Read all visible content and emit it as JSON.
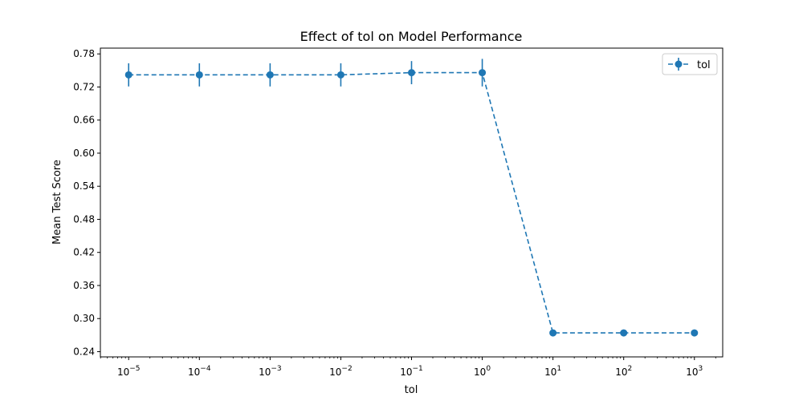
{
  "chart_data": {
    "type": "line",
    "title": "Effect of tol on Model Performance",
    "xlabel": "tol",
    "ylabel": "Mean Test Score",
    "xscale": "log",
    "xlim_exp": [
      -5.4,
      3.4
    ],
    "ylim": [
      0.2305,
      0.7905
    ],
    "x_ticks": [
      {
        "base": "10",
        "exp": "−5"
      },
      {
        "base": "10",
        "exp": "−4"
      },
      {
        "base": "10",
        "exp": "−3"
      },
      {
        "base": "10",
        "exp": "−2"
      },
      {
        "base": "10",
        "exp": "−1"
      },
      {
        "base": "10",
        "exp": "0"
      },
      {
        "base": "10",
        "exp": "1"
      },
      {
        "base": "10",
        "exp": "2"
      },
      {
        "base": "10",
        "exp": "3"
      }
    ],
    "x_tick_values": [
      1e-05,
      0.0001,
      0.001,
      0.01,
      0.1,
      1,
      10,
      100,
      1000
    ],
    "y_ticks": [
      "0.24",
      "0.30",
      "0.36",
      "0.42",
      "0.48",
      "0.54",
      "0.60",
      "0.66",
      "0.72",
      "0.78"
    ],
    "y_tick_values": [
      0.24,
      0.3,
      0.36,
      0.42,
      0.48,
      0.54,
      0.6,
      0.66,
      0.72,
      0.78
    ],
    "grid": false,
    "legend_position": "top-right",
    "series": [
      {
        "name": "tol",
        "color": "#1f77b4",
        "linestyle": "dashed",
        "marker": "circle",
        "x": [
          1e-05,
          0.0001,
          0.001,
          0.01,
          0.1,
          1,
          10,
          100,
          1000
        ],
        "y": [
          0.742,
          0.742,
          0.742,
          0.742,
          0.746,
          0.746,
          0.274,
          0.274,
          0.274
        ],
        "yerr": [
          0.021,
          0.021,
          0.021,
          0.021,
          0.021,
          0.025,
          0.002,
          0.002,
          0.002
        ]
      }
    ]
  }
}
